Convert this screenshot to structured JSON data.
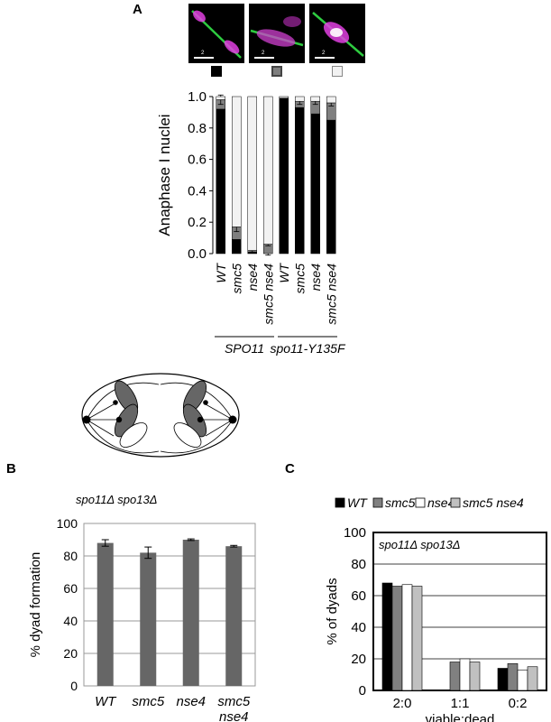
{
  "panels": {
    "a": "A",
    "b": "B",
    "c": "C"
  },
  "micrographs": [
    {
      "scale_label": "2"
    },
    {
      "scale_label": "2"
    },
    {
      "scale_label": "2"
    }
  ],
  "swatch_colors": [
    "#000000",
    "#7f7f7f",
    "#f2f2f2"
  ],
  "chart_data": [
    {
      "type": "bar",
      "stacked": true,
      "ylabel": "Anaphase I nuclei",
      "ylim": [
        0,
        1.0
      ],
      "yticks": [
        "0.0",
        "0.2",
        "0.4",
        "0.6",
        "0.8",
        "1.0"
      ],
      "categories": [
        "WT",
        "smc5",
        "nse4",
        "smc5 nse4",
        "WT",
        "smc5",
        "nse4",
        "smc5 nse4"
      ],
      "groups": [
        {
          "label": "SPO11",
          "members": [
            0,
            1,
            2,
            3
          ]
        },
        {
          "label": "spo11-Y135F",
          "members": [
            4,
            5,
            6,
            7
          ]
        }
      ],
      "series": [
        {
          "color": "#000000",
          "values": [
            0.92,
            0.09,
            0.01,
            0.0,
            0.99,
            0.93,
            0.89,
            0.85
          ]
        },
        {
          "color": "#7f7f7f",
          "values": [
            0.06,
            0.08,
            0.01,
            0.06,
            0.0,
            0.04,
            0.08,
            0.11
          ]
        },
        {
          "color": "#f2f2f2",
          "values": [
            0.02,
            0.83,
            0.98,
            0.94,
            0.01,
            0.03,
            0.03,
            0.04
          ]
        }
      ]
    },
    {
      "type": "bar",
      "title": "spo11Δ spo13Δ",
      "ylabel": "% dyad formation",
      "ylim": [
        0,
        100
      ],
      "yticks": [
        "0",
        "20",
        "40",
        "60",
        "80",
        "100"
      ],
      "categories": [
        "WT",
        "smc5",
        "nse4",
        "smc5\nnse4"
      ],
      "values": [
        88,
        82,
        90,
        86
      ],
      "errors": [
        2,
        3.5,
        0.5,
        0.5
      ],
      "color": "#666666"
    },
    {
      "type": "bar",
      "title": "spo11Δ spo13Δ",
      "ylabel": "% of dyads",
      "xlabel": "viable:dead",
      "ylim": [
        0,
        100
      ],
      "yticks": [
        "0",
        "20",
        "40",
        "60",
        "80",
        "100"
      ],
      "categories": [
        "2:0",
        "1:1",
        "0:2"
      ],
      "series": [
        {
          "name": "WT",
          "color": "#000000",
          "values": [
            68,
            0,
            14
          ]
        },
        {
          "name": "smc5",
          "color": "#808080",
          "values": [
            66,
            18,
            17
          ]
        },
        {
          "name": "nse4",
          "color": "#ffffff",
          "values": [
            67,
            20,
            13
          ]
        },
        {
          "name": "smc5 nse4",
          "color": "#c0c0c0",
          "values": [
            66,
            18,
            15
          ]
        }
      ]
    }
  ]
}
